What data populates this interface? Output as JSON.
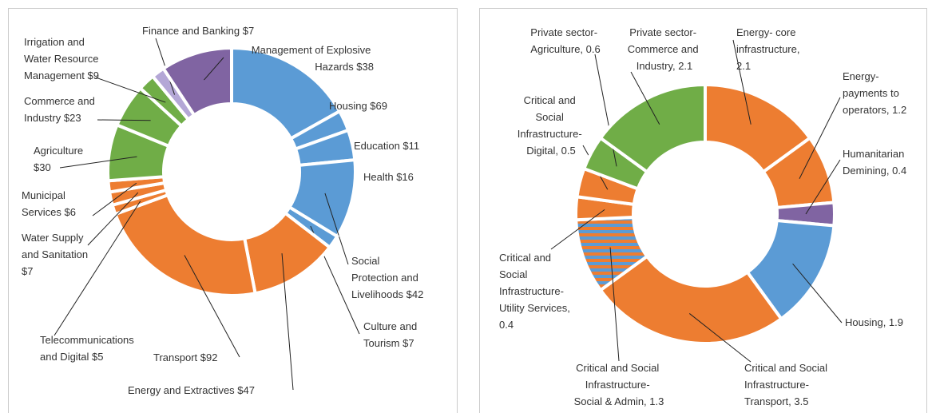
{
  "chart_data": [
    {
      "type": "pie",
      "labels": [
        "Housing $69",
        "Education $11",
        "Health $16",
        "Social Protection and Livelihoods $42",
        "Culture and Tourism $7",
        "Energy and Extractives $47",
        "Transport $92",
        "Telecommunications and Digital $5",
        "Water Supply and Sanitation $7",
        "Municipal Services $6",
        "Agriculture $30",
        "Commerce and Industry $23",
        "Irrigation and Water Resource Management $9",
        "Finance and Banking $7",
        "Management of Explosive Hazards $38"
      ],
      "values": [
        69,
        11,
        16,
        42,
        7,
        47,
        92,
        5,
        7,
        6,
        30,
        23,
        9,
        7,
        38
      ],
      "colors": [
        "#5b9bd5",
        "#5b9bd5",
        "#5b9bd5",
        "#5b9bd5",
        "#5b9bd5",
        "#ed7d31",
        "#ed7d31",
        "#ed7d31",
        "#ed7d31",
        "#ed7d31",
        "#70ad47",
        "#70ad47",
        "#70ad47",
        "#b4a7d6",
        "#8064a2"
      ]
    },
    {
      "type": "pie",
      "labels": [
        "Energy- core infrastructure, 2.1",
        "Energy- payments to operators, 1.2",
        "Humanitarian Demining, 0.4",
        "Housing, 1.9",
        "Critical and Social Infrastructure- Transport, 3.5",
        "Critical and Social Infrastructure- Social & Admin, 1.3",
        "Critical and Social Infrastructure- Utility Services, 0.4",
        "Critical and Social Infrastructure- Digital, 0.5",
        "Private sector- Agriculture, 0.6",
        "Private sector- Commerce and Industry, 2.1"
      ],
      "values": [
        2.1,
        1.2,
        0.4,
        1.9,
        3.5,
        1.3,
        0.4,
        0.5,
        0.6,
        2.1
      ],
      "colors": [
        "#ed7d31",
        "#ed7d31",
        "#8064a2",
        "#5b9bd5",
        "#ed7d31",
        "#ed7d31",
        "#ed7d31",
        "#ed7d31",
        "#70ad47",
        "#70ad47"
      ],
      "striped": [
        5
      ],
      "stripe_color": "#5b9bd5"
    }
  ]
}
